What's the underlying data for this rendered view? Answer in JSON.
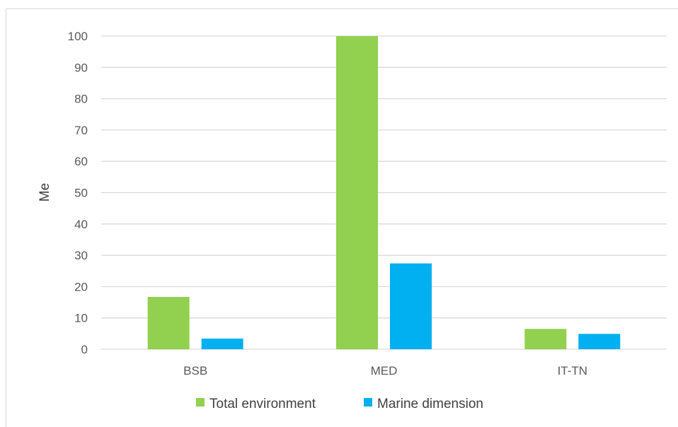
{
  "chart_data": {
    "type": "bar",
    "categories": [
      "BSB",
      "MED",
      "IT-TN"
    ],
    "series": [
      {
        "name": "Total environment",
        "color": "#92d050",
        "values": [
          16.7,
          100,
          6.5
        ]
      },
      {
        "name": "Marine dimension",
        "color": "#00b0f0",
        "values": [
          3.4,
          27.4,
          4.9
        ]
      }
    ],
    "ylabel": "Me",
    "xlabel": "",
    "ylim": [
      0,
      100
    ],
    "yticks": [
      0,
      10,
      20,
      30,
      40,
      50,
      60,
      70,
      80,
      90,
      100
    ],
    "grid": true,
    "legend_position": "bottom"
  }
}
